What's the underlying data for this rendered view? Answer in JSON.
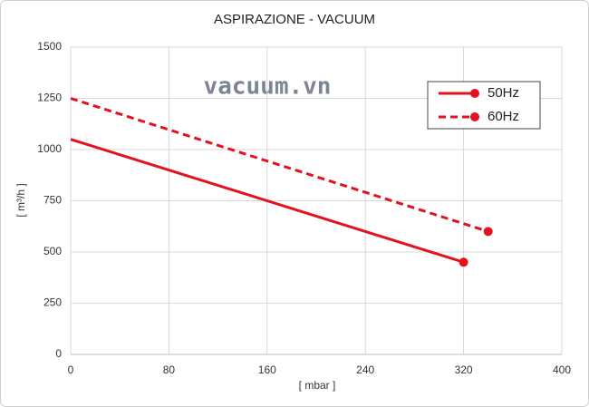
{
  "chart_data": {
    "type": "line",
    "title": "ASPIRAZIONE - VACUUM",
    "annotation": "vacuum.vn",
    "x_label": "[ mbar ]",
    "y_label": "[ m³/h ]",
    "xlim": [
      0,
      400
    ],
    "xticks": [
      0,
      80,
      160,
      240,
      320,
      400
    ],
    "ylim": [
      0,
      1500
    ],
    "yticks": [
      0,
      250,
      500,
      750,
      1000,
      1250,
      1500
    ],
    "grid": true,
    "legend": "upper right",
    "series": [
      {
        "name": "50Hz",
        "color": "#e2131f",
        "linestyle": "solid",
        "x": [
          0,
          320
        ],
        "values": [
          1050,
          450
        ]
      },
      {
        "name": "60Hz",
        "color": "#e2131f",
        "linestyle": "dashed",
        "x": [
          0,
          340
        ],
        "values": [
          1250,
          600
        ]
      }
    ]
  }
}
